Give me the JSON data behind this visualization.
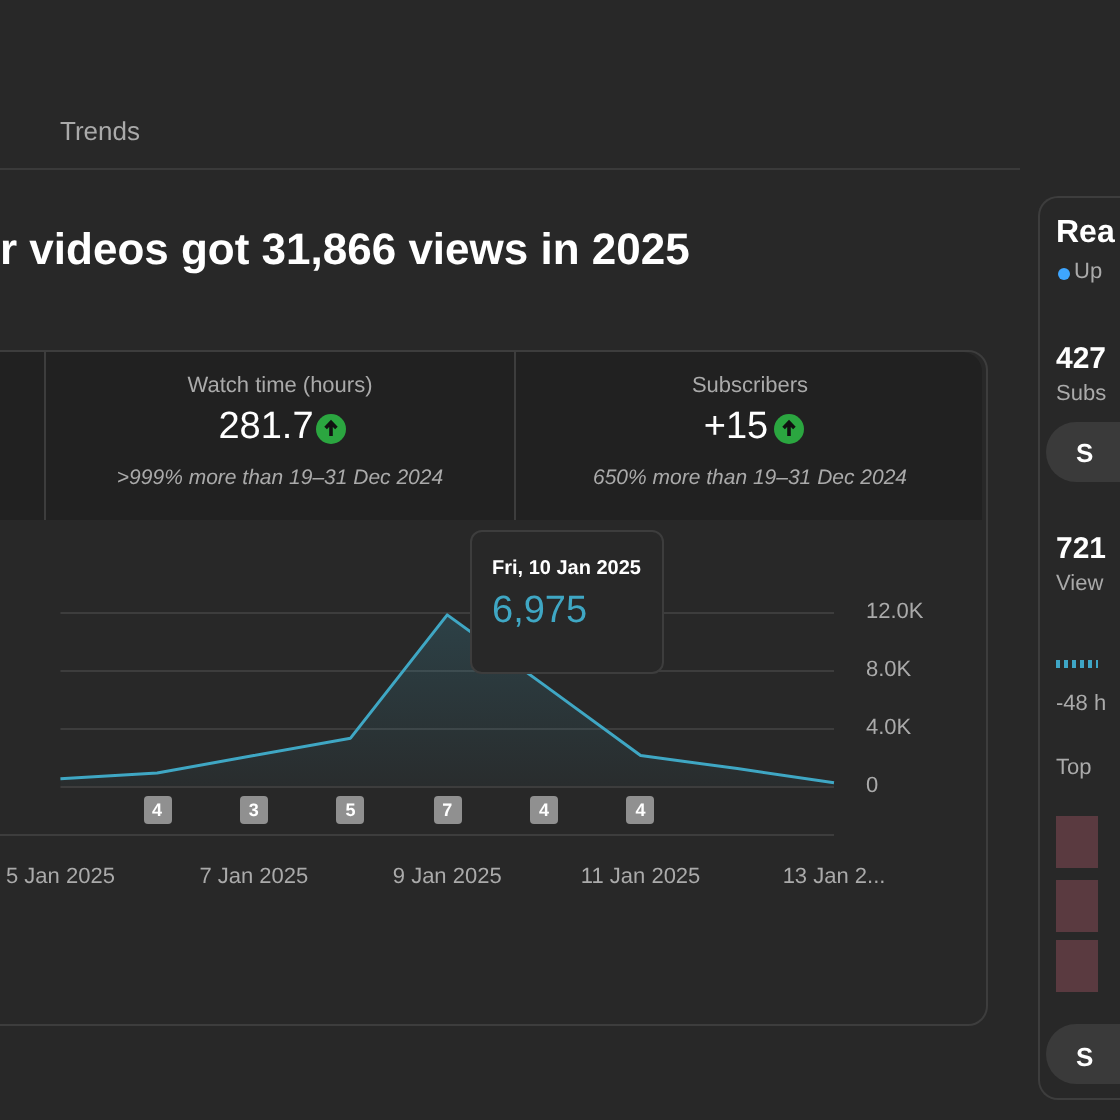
{
  "chart_data": {
    "type": "area",
    "title": "r videos got 31,866 views in 2025",
    "categories": [
      "5 Jan 2025",
      null,
      "7 Jan 2025",
      null,
      "9 Jan 2025",
      null,
      "11 Jan 2025",
      null,
      "13 Jan 2..."
    ],
    "series": [
      {
        "color": "#3fa7c4",
        "values": [
          500,
          900,
          2100,
          3300,
          11800,
          6975,
          2100,
          1200,
          230
        ]
      }
    ],
    "ylim": [
      0,
      12000
    ],
    "yticks": [
      {
        "value": 0,
        "label": "0"
      },
      {
        "value": 4000,
        "label": "4.0K"
      },
      {
        "value": 8000,
        "label": "8.0K"
      },
      {
        "value": 12000,
        "label": "12.0K"
      }
    ],
    "grid": "y",
    "marker": "none",
    "annotations": [
      "Trends",
      "Watch time (hours)",
      "281.7",
      ">999% more than 19–31 Dec 2024",
      "Subscribers",
      "+15",
      "650% more than 19–31 Dec 2024",
      "Fri, 10 Jan 2025",
      "6,975",
      "4",
      "3",
      "5",
      "7",
      "4",
      "4",
      "Rea",
      "Up",
      "427",
      "Subs",
      "S",
      "721",
      "View",
      "-48 h",
      "Top",
      "S"
    ]
  }
}
